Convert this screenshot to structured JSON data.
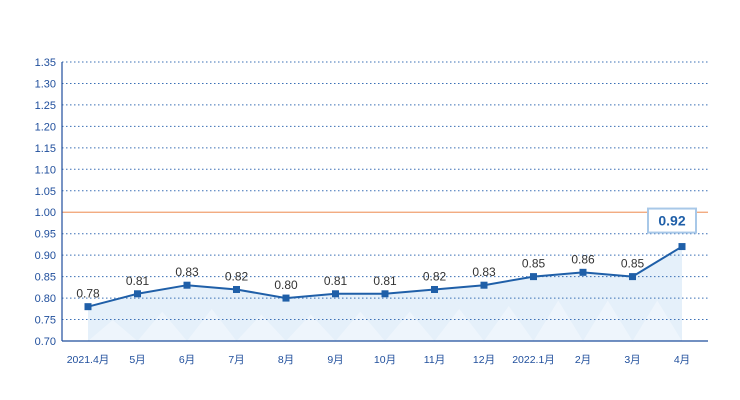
{
  "chart_data": {
    "type": "line",
    "categories": [
      "2021.4月",
      "5月",
      "6月",
      "7月",
      "8月",
      "9月",
      "10月",
      "11月",
      "12月",
      "2022.1月",
      "2月",
      "3月",
      "4月"
    ],
    "values": [
      0.78,
      0.81,
      0.83,
      0.82,
      0.8,
      0.81,
      0.81,
      0.82,
      0.83,
      0.85,
      0.86,
      0.85,
      0.92
    ],
    "data_labels": [
      "0.78",
      "0.81",
      "0.83",
      "0.82",
      "0.80",
      "0.81",
      "0.81",
      "0.82",
      "0.83",
      "0.85",
      "0.86",
      "0.85",
      "0.92"
    ],
    "highlight_index": 12,
    "y_ticks": [
      "0.70",
      "0.75",
      "0.80",
      "0.85",
      "0.90",
      "0.95",
      "1.00",
      "1.05",
      "1.10",
      "1.15",
      "1.20",
      "1.25",
      "1.30",
      "1.35"
    ],
    "ylim": [
      0.7,
      1.35
    ],
    "reference_line": 1.0,
    "grid": "dotted-horizontal",
    "title": "",
    "xlabel": "",
    "ylabel": "",
    "colors": {
      "line": "#1f5fa8",
      "marker": "#1f5fa8",
      "axis": "#1f4e9c",
      "grid": "#3a6fb5",
      "reference": "#f0a070",
      "area": "#dcebf8",
      "highlight_border": "#a8c8e8"
    }
  }
}
